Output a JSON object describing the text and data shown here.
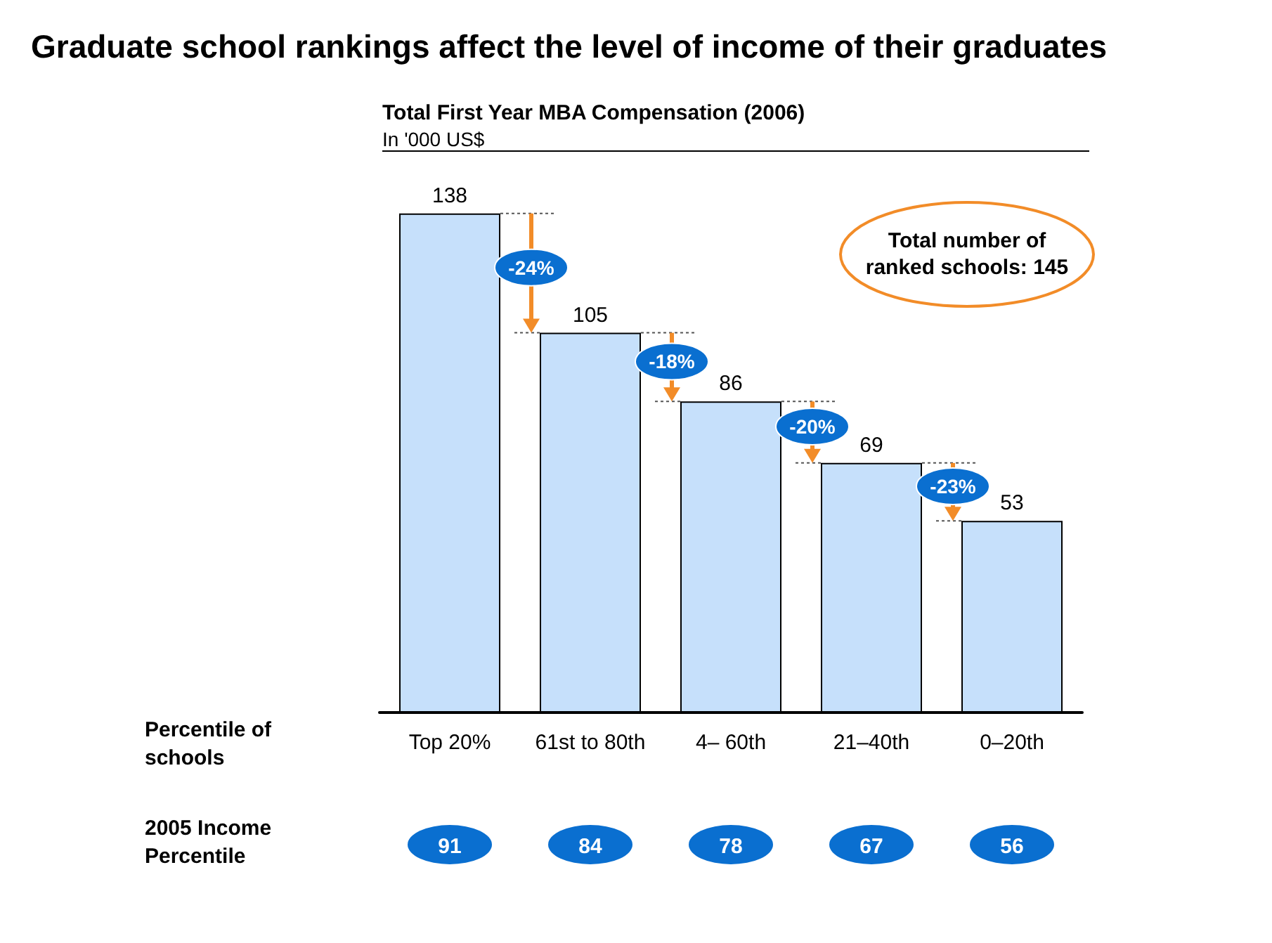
{
  "chart_data": {
    "type": "bar",
    "title": "Graduate school rankings affect the level of income of their graduates",
    "subtitle": "Total First Year MBA Compensation (2006)",
    "ylabel": "In '000 US$",
    "categories": [
      "Top 20%",
      "61st to 80th",
      "4– 60th",
      "21–40th",
      "0–20th"
    ],
    "values": [
      138,
      105,
      86,
      69,
      53
    ],
    "color": "#c6e0fb",
    "data_labels": true,
    "annotations": [
      "Total number of ranked schools: 145",
      "-24%",
      "-18%",
      "-20%",
      "-23%",
      "Percentile of schools",
      "2005 Income Percentile",
      "91",
      "84",
      "78",
      "67",
      "56"
    ]
  }
}
